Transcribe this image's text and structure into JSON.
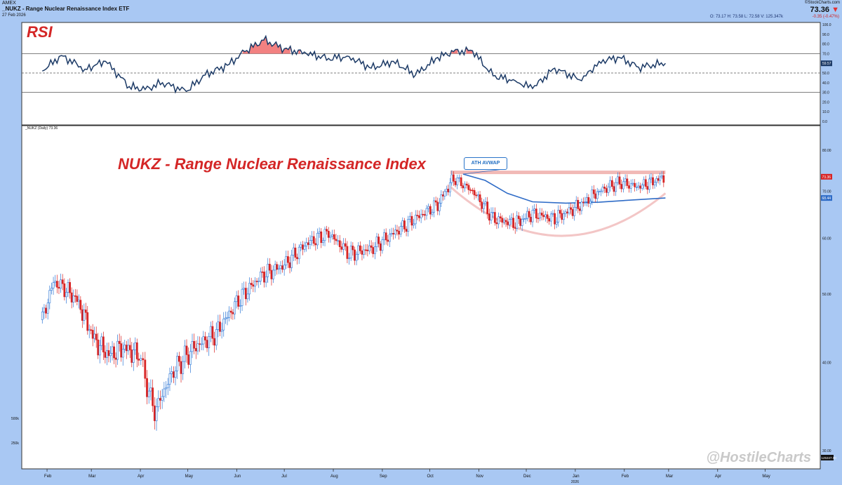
{
  "header": {
    "exchange": "AMEX",
    "symbol_title": "_NUKZ - Range Nuclear Renaissance Index ETF",
    "date": "27 Feb 2026",
    "brand": "©StockCharts.com",
    "last": "73.36",
    "ohlc": "O: 73.17   H: 73.58   L: 72.58   V: 125.347k",
    "change": "-0.35 (-0.47%)"
  },
  "colors": {
    "up": "#2f78d6",
    "down": "#d82323",
    "rsi_line": "#1c3a66",
    "avwap": "#2f6cc7",
    "resistance": "#f1b9b6",
    "cup": "#f3c6c6",
    "overbought_fill": "#f06b6b"
  },
  "rsi_panel": {
    "label": "RSI",
    "axis_ticks": [
      "100.0",
      "90.0",
      "80.0",
      "70.0",
      "60.0",
      "50.0",
      "40.0",
      "30.0",
      "20.0",
      "10.0",
      "0.0"
    ],
    "current_value": "59.57"
  },
  "price_panel": {
    "subtitle": "_NUKZ (Daily) 73.36",
    "title": "NUKZ - Range Nuclear Renaissance Index",
    "annotation": "ATH AVWAP",
    "axis_ticks": [
      "80.00",
      "70.00",
      "60.00",
      "50.00",
      "40.00",
      "30.00"
    ],
    "last_price_tag": "73.36",
    "avwap_tag": "68.44",
    "volume_tag": "125347.00",
    "volume_ticks": [
      "500k",
      "250k"
    ],
    "watermark": "@HostileCharts"
  },
  "x_axis": {
    "months": [
      "Feb",
      "Mar",
      "Apr",
      "May",
      "Jun",
      "Jul",
      "Aug",
      "Sep",
      "Oct",
      "Nov",
      "Dec",
      "Jan",
      "Feb",
      "Mar",
      "Apr",
      "May"
    ],
    "year_label": "2026"
  },
  "chart_data": [
    {
      "type": "line",
      "title": "RSI",
      "ylim": [
        0,
        100
      ],
      "reference_lines": [
        70,
        50,
        30
      ],
      "x": [
        "2025-01-29",
        "2025-02-10",
        "2025-02-25",
        "2025-03-10",
        "2025-03-25",
        "2025-04-04",
        "2025-04-15",
        "2025-04-30",
        "2025-05-12",
        "2025-05-26",
        "2025-06-06",
        "2025-06-18",
        "2025-07-01",
        "2025-07-15",
        "2025-07-29",
        "2025-08-11",
        "2025-08-25",
        "2025-09-08",
        "2025-09-22",
        "2025-10-06",
        "2025-10-16",
        "2025-10-28",
        "2025-11-10",
        "2025-11-24",
        "2025-12-05",
        "2025-12-19",
        "2026-01-05",
        "2026-01-16",
        "2026-01-29",
        "2026-02-10",
        "2026-02-27"
      ],
      "series": [
        {
          "values": [
            52,
            68,
            54,
            62,
            36,
            33,
            40,
            31,
            48,
            58,
            72,
            84,
            75,
            70,
            65,
            67,
            55,
            62,
            48,
            66,
            72,
            73,
            47,
            42,
            34,
            55,
            42,
            62,
            66,
            56,
            60
          ]
        }
      ]
    },
    {
      "type": "candlestick",
      "title": "NUKZ - Range Nuclear Renaissance Index",
      "ylim": [
        30,
        80
      ],
      "x": [
        "2025-01-29",
        "2025-02-05",
        "2025-02-12",
        "2025-02-20",
        "2025-03-03",
        "2025-03-12",
        "2025-03-21",
        "2025-03-31",
        "2025-04-04",
        "2025-04-10",
        "2025-04-22",
        "2025-05-05",
        "2025-05-19",
        "2025-06-02",
        "2025-06-16",
        "2025-07-01",
        "2025-07-15",
        "2025-07-29",
        "2025-08-11",
        "2025-08-25",
        "2025-09-08",
        "2025-09-22",
        "2025-10-06",
        "2025-10-16",
        "2025-10-28",
        "2025-11-10",
        "2025-11-24",
        "2025-12-05",
        "2025-12-19",
        "2026-01-05",
        "2026-01-16",
        "2026-01-29",
        "2026-02-10",
        "2026-02-27"
      ],
      "series": [
        {
          "name": "_NUKZ (Daily)",
          "close": [
            46,
            52,
            51,
            49,
            43,
            41,
            42,
            41,
            38,
            34,
            39,
            42,
            44,
            49,
            53,
            55,
            59,
            61,
            57,
            58,
            61,
            64,
            67,
            73,
            70,
            64,
            63,
            65,
            64,
            67,
            70,
            72,
            71,
            73.36
          ]
        }
      ],
      "avwap": {
        "label": "ATH AVWAP",
        "value": 68.44
      },
      "resistance": 74.5
    }
  ]
}
